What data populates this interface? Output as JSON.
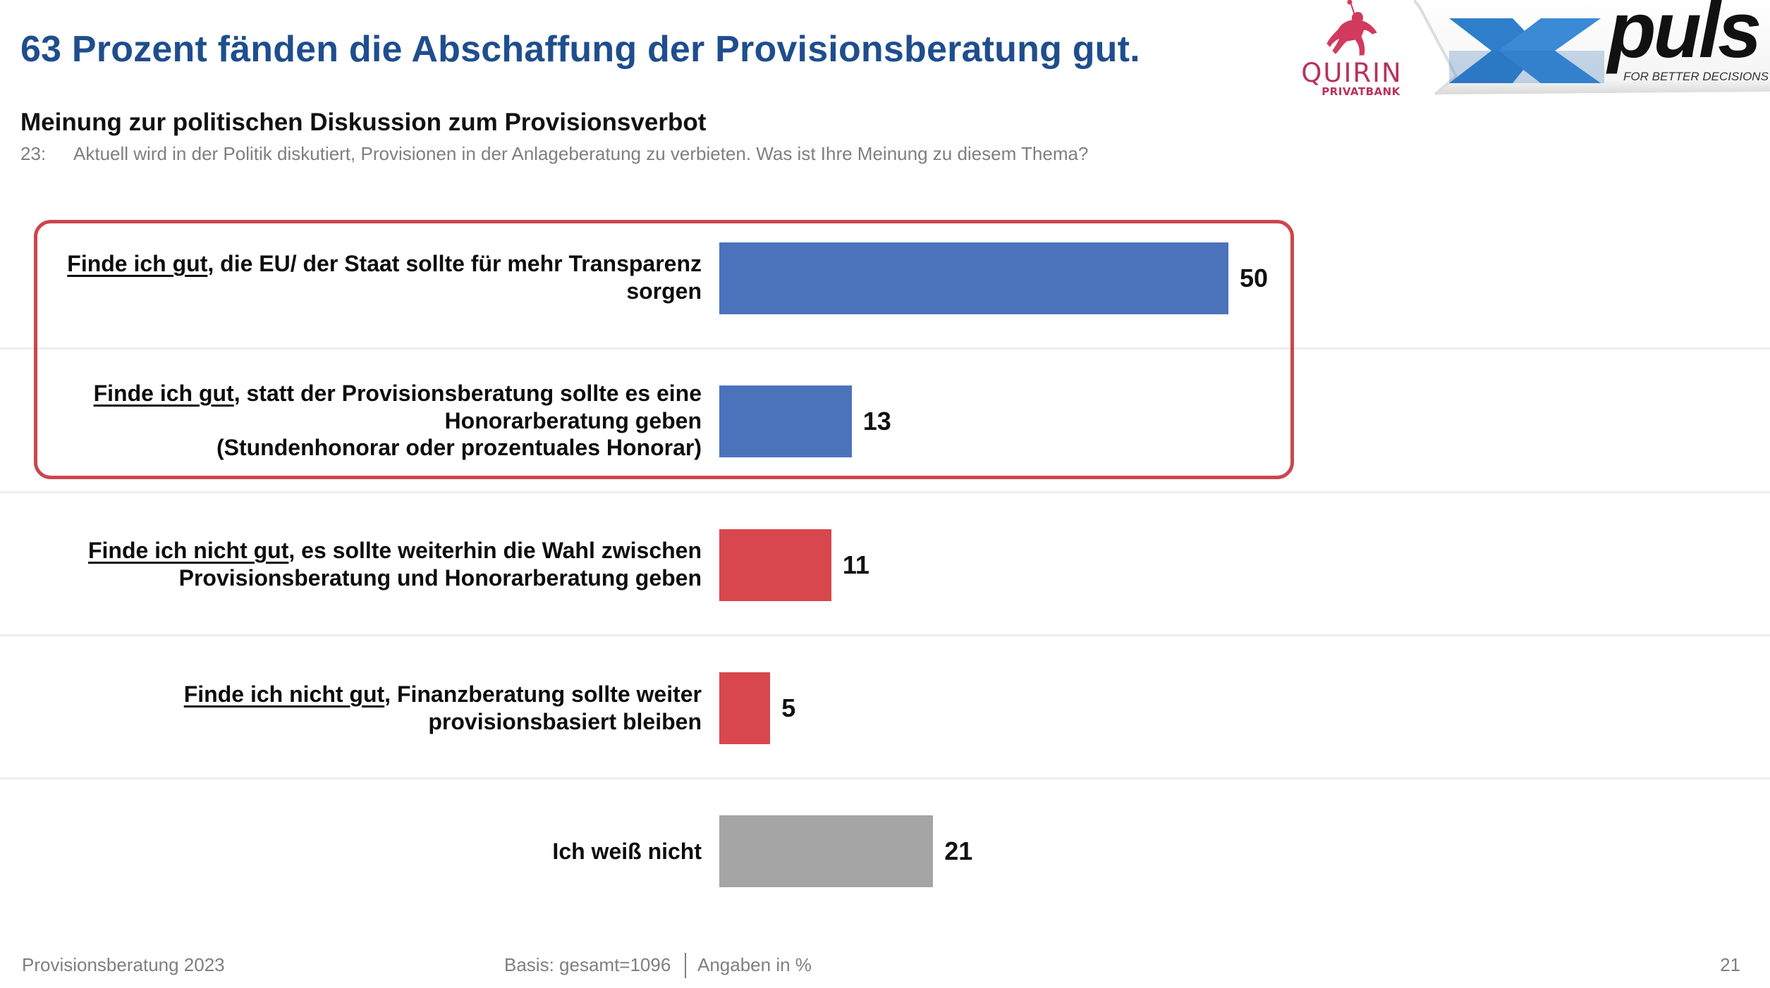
{
  "header": {
    "title": "63 Prozent fänden die Abschaffung der Provisionsberatung gut.",
    "subheading": "Meinung zur politischen Diskussion zum Provisionsverbot",
    "question_number": "23:",
    "question_text": "Aktuell wird in der Politik diskutiert, Provisionen in der Anlageberatung zu verbieten. Was ist Ihre Meinung zu diesem Thema?"
  },
  "logos": {
    "quirin": {
      "name": "QUIRIN",
      "sub": "PRIVATBANK",
      "color": "#b8325c"
    },
    "xpuls": {
      "name": "puls",
      "tagline": "FOR BETTER DECISIONS",
      "x_color": "#2f7ecb"
    }
  },
  "colors": {
    "positive": "#4b73bc",
    "negative": "#d8474e",
    "neutral": "#a5a5a5",
    "highlight_border": "#c9474d",
    "title": "#1f4e8d"
  },
  "chart_data": {
    "type": "bar",
    "orientation": "horizontal",
    "unit": "%",
    "title": "Meinung zur politischen Diskussion zum Provisionsverbot",
    "xlabel": "",
    "ylabel": "",
    "xlim": [
      0,
      50
    ],
    "grid": false,
    "highlighted_group": {
      "label": "Finde ich gut (gesamt)",
      "categories": [
        0,
        1
      ],
      "total": 63
    },
    "categories": [
      {
        "emphasis": "Finde ich gut",
        "lines": [
          ", die EU/ der Staat sollte für mehr Transparenz",
          "sorgen"
        ],
        "full": "Finde ich gut, die EU/ der Staat sollte für mehr Transparenz sorgen",
        "value": 50,
        "color_key": "positive"
      },
      {
        "emphasis": "Finde ich gut",
        "lines": [
          ", statt der Provisionsberatung sollte es eine",
          "Honorarberatung geben",
          "(Stundenhonorar oder prozentuales Honorar)"
        ],
        "full": "Finde ich gut, statt der Provisionsberatung sollte es eine Honorarberatung geben (Stundenhonorar oder prozentuales Honorar)",
        "value": 13,
        "color_key": "positive"
      },
      {
        "emphasis": "Finde ich nicht gut",
        "lines": [
          ", es sollte weiterhin die Wahl zwischen",
          "Provisionsberatung und Honorarberatung geben"
        ],
        "full": "Finde ich nicht gut, es sollte weiterhin die Wahl zwischen Provisionsberatung und Honorarberatung geben",
        "value": 11,
        "color_key": "negative"
      },
      {
        "emphasis": "Finde ich nicht gut",
        "lines": [
          ", Finanzberatung sollte weiter",
          "provisionsbasiert bleiben"
        ],
        "full": "Finde ich nicht gut, Finanzberatung sollte weiter provisionsbasiert bleiben",
        "value": 5,
        "color_key": "negative"
      },
      {
        "emphasis": "",
        "lines": [
          "Ich weiß nicht"
        ],
        "full": "Ich weiß nicht",
        "value": 21,
        "color_key": "neutral"
      }
    ]
  },
  "footer": {
    "left": "Provisionsberatung 2023",
    "basis": "Basis: gesamt=1096",
    "unit_note": "Angaben in %",
    "page_number": "21"
  }
}
